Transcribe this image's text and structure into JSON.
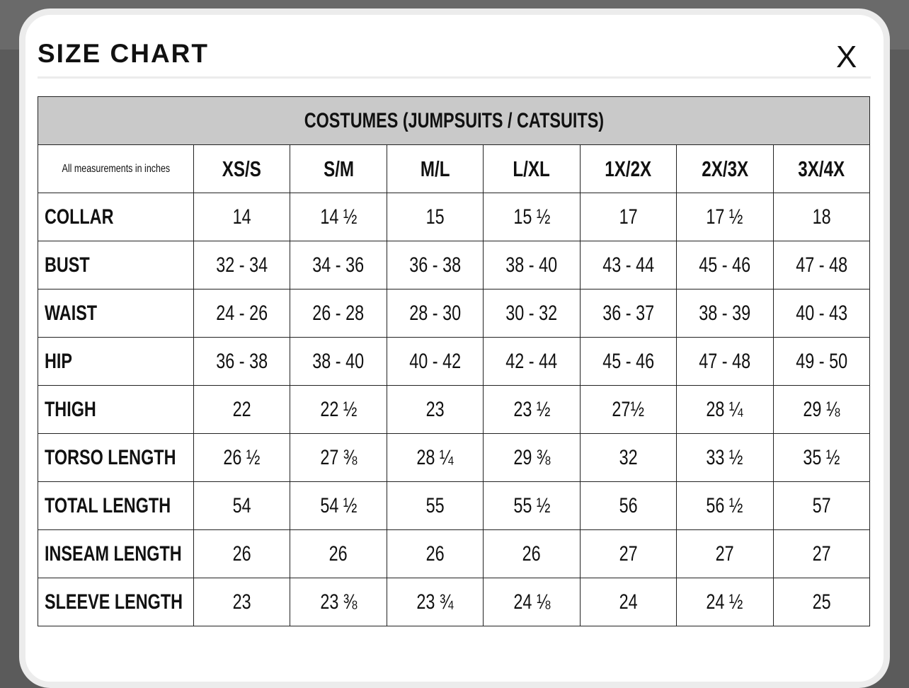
{
  "header": {
    "title": "SIZE CHART",
    "close": "X"
  },
  "table": {
    "title": "COSTUMES (JUMPSUITS / CATSUITS)",
    "note": "All measurements in inches",
    "columns": [
      "XS/S",
      "S/M",
      "M/L",
      "L/XL",
      "1X/2X",
      "2X/3X",
      "3X/4X"
    ],
    "rows": [
      [
        "COLLAR",
        "14",
        "14 ½",
        "15",
        "15 ½",
        "17",
        "17 ½",
        "18"
      ],
      [
        "BUST",
        "32 - 34",
        "34 - 36",
        "36 - 38",
        "38 - 40",
        "43 - 44",
        "45 - 46",
        "47 - 48"
      ],
      [
        "WAIST",
        "24 - 26",
        "26 - 28",
        "28 - 30",
        "30 - 32",
        "36 - 37",
        "38 - 39",
        "40 - 43"
      ],
      [
        "HIP",
        "36 - 38",
        "38 - 40",
        "40 - 42",
        "42 - 44",
        "45 - 46",
        "47 - 48",
        "49 - 50"
      ],
      [
        "THIGH",
        "22",
        "22 ½",
        "23",
        "23 ½",
        "27½",
        "28 ¼",
        "29 ⅛"
      ],
      [
        "TORSO LENGTH",
        "26 ½",
        "27 ⅜",
        "28 ¼",
        "29 ⅜",
        "32",
        "33 ½",
        "35 ½"
      ],
      [
        "TOTAL LENGTH",
        "54",
        "54 ½",
        "55",
        "55 ½",
        "56",
        "56 ½",
        "57"
      ],
      [
        "INSEAM LENGTH",
        "26",
        "26",
        "26",
        "26",
        "27",
        "27",
        "27"
      ],
      [
        "SLEEVE LENGTH",
        "23",
        "23 ⅜",
        "23 ¾",
        "24 ⅛",
        "24",
        "24 ½",
        "25"
      ]
    ]
  }
}
